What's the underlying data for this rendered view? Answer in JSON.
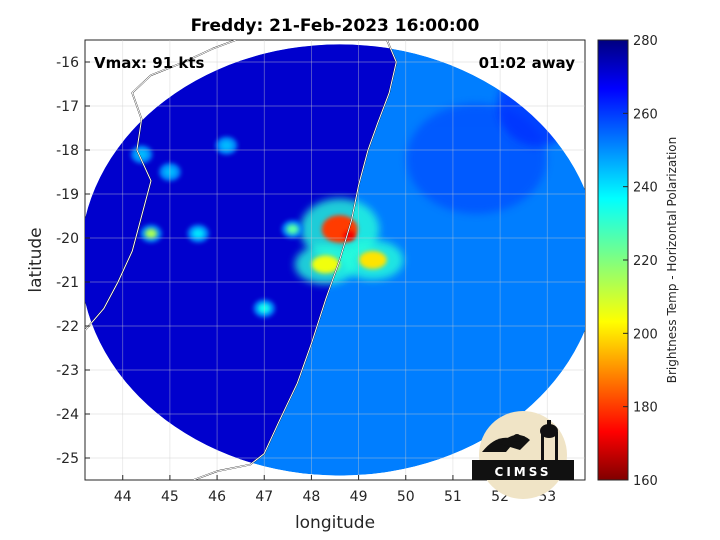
{
  "title": "Freddy: 21-Feb-2023 16:00:00",
  "annotations": {
    "vmax": "Vmax: 91 kts",
    "time_away": "01:02 away"
  },
  "logo": {
    "text": "CIMSS"
  },
  "chart_data": {
    "type": "heatmap",
    "title": "Freddy: 21-Feb-2023 16:00:00",
    "xlabel": "longitude",
    "ylabel": "latitude",
    "xlim": [
      43.2,
      53.8
    ],
    "ylim": [
      -25.5,
      -15.5
    ],
    "x_ticks": [
      44,
      45,
      46,
      47,
      48,
      49,
      50,
      51,
      52,
      53
    ],
    "y_ticks": [
      -16,
      -17,
      -18,
      -19,
      -20,
      -21,
      -22,
      -23,
      -24,
      -25
    ],
    "grid": true,
    "colorbar": {
      "label": "Brightness Temp - Horizontal Polarization",
      "min": 160,
      "max": 280,
      "ticks": [
        160,
        180,
        200,
        220,
        240,
        260,
        280
      ],
      "colormap": "jet"
    },
    "swath": {
      "shape": "circle",
      "center_lon": 48.6,
      "center_lat": -20.5,
      "radius_lon": 5.5,
      "radius_lat": 4.9,
      "land_value": 272,
      "ocean_value": 252
    },
    "storm_center": {
      "lon": 48.8,
      "lat": -19.95
    },
    "features": [
      {
        "kind": "eyewall-core",
        "lon": 48.6,
        "lat": -19.8,
        "value": 180
      },
      {
        "kind": "rainband",
        "lon": 49.3,
        "lat": -20.5,
        "value": 200
      },
      {
        "kind": "rainband",
        "lon": 48.3,
        "lat": -20.6,
        "value": 205
      },
      {
        "kind": "convection",
        "lon": 47.6,
        "lat": -19.8,
        "value": 225
      },
      {
        "kind": "convection",
        "lon": 47.0,
        "lat": -21.6,
        "value": 235
      },
      {
        "kind": "convection",
        "lon": 44.6,
        "lat": -19.9,
        "value": 215
      },
      {
        "kind": "convection",
        "lon": 45.6,
        "lat": -19.9,
        "value": 240
      },
      {
        "kind": "convection",
        "lon": 44.4,
        "lat": -18.1,
        "value": 245
      },
      {
        "kind": "convection",
        "lon": 45.0,
        "lat": -18.5,
        "value": 245
      },
      {
        "kind": "convection",
        "lon": 46.2,
        "lat": -17.9,
        "value": 245
      }
    ],
    "coastlines": [
      {
        "name": "madagascar-east-coast",
        "points": [
          [
            49.6,
            -15.5
          ],
          [
            49.8,
            -16.0
          ],
          [
            49.65,
            -16.7
          ],
          [
            49.4,
            -17.4
          ],
          [
            49.2,
            -18.0
          ],
          [
            49.0,
            -18.8
          ],
          [
            48.85,
            -19.6
          ],
          [
            48.6,
            -20.5
          ],
          [
            48.3,
            -21.4
          ],
          [
            48.0,
            -22.4
          ],
          [
            47.7,
            -23.3
          ],
          [
            47.3,
            -24.2
          ],
          [
            47.0,
            -24.9
          ],
          [
            46.7,
            -25.15
          ],
          [
            46.0,
            -25.3
          ],
          [
            45.5,
            -25.5
          ]
        ]
      },
      {
        "name": "mozambique-coast",
        "points": [
          [
            46.4,
            -15.5
          ],
          [
            45.9,
            -15.7
          ],
          [
            45.3,
            -16.0
          ],
          [
            44.6,
            -16.3
          ],
          [
            44.2,
            -16.7
          ],
          [
            44.4,
            -17.3
          ],
          [
            44.3,
            -18.0
          ],
          [
            44.6,
            -18.7
          ],
          [
            44.4,
            -19.5
          ],
          [
            44.2,
            -20.3
          ],
          [
            43.9,
            -21.0
          ],
          [
            43.6,
            -21.6
          ],
          [
            43.2,
            -22.1
          ]
        ]
      }
    ]
  }
}
